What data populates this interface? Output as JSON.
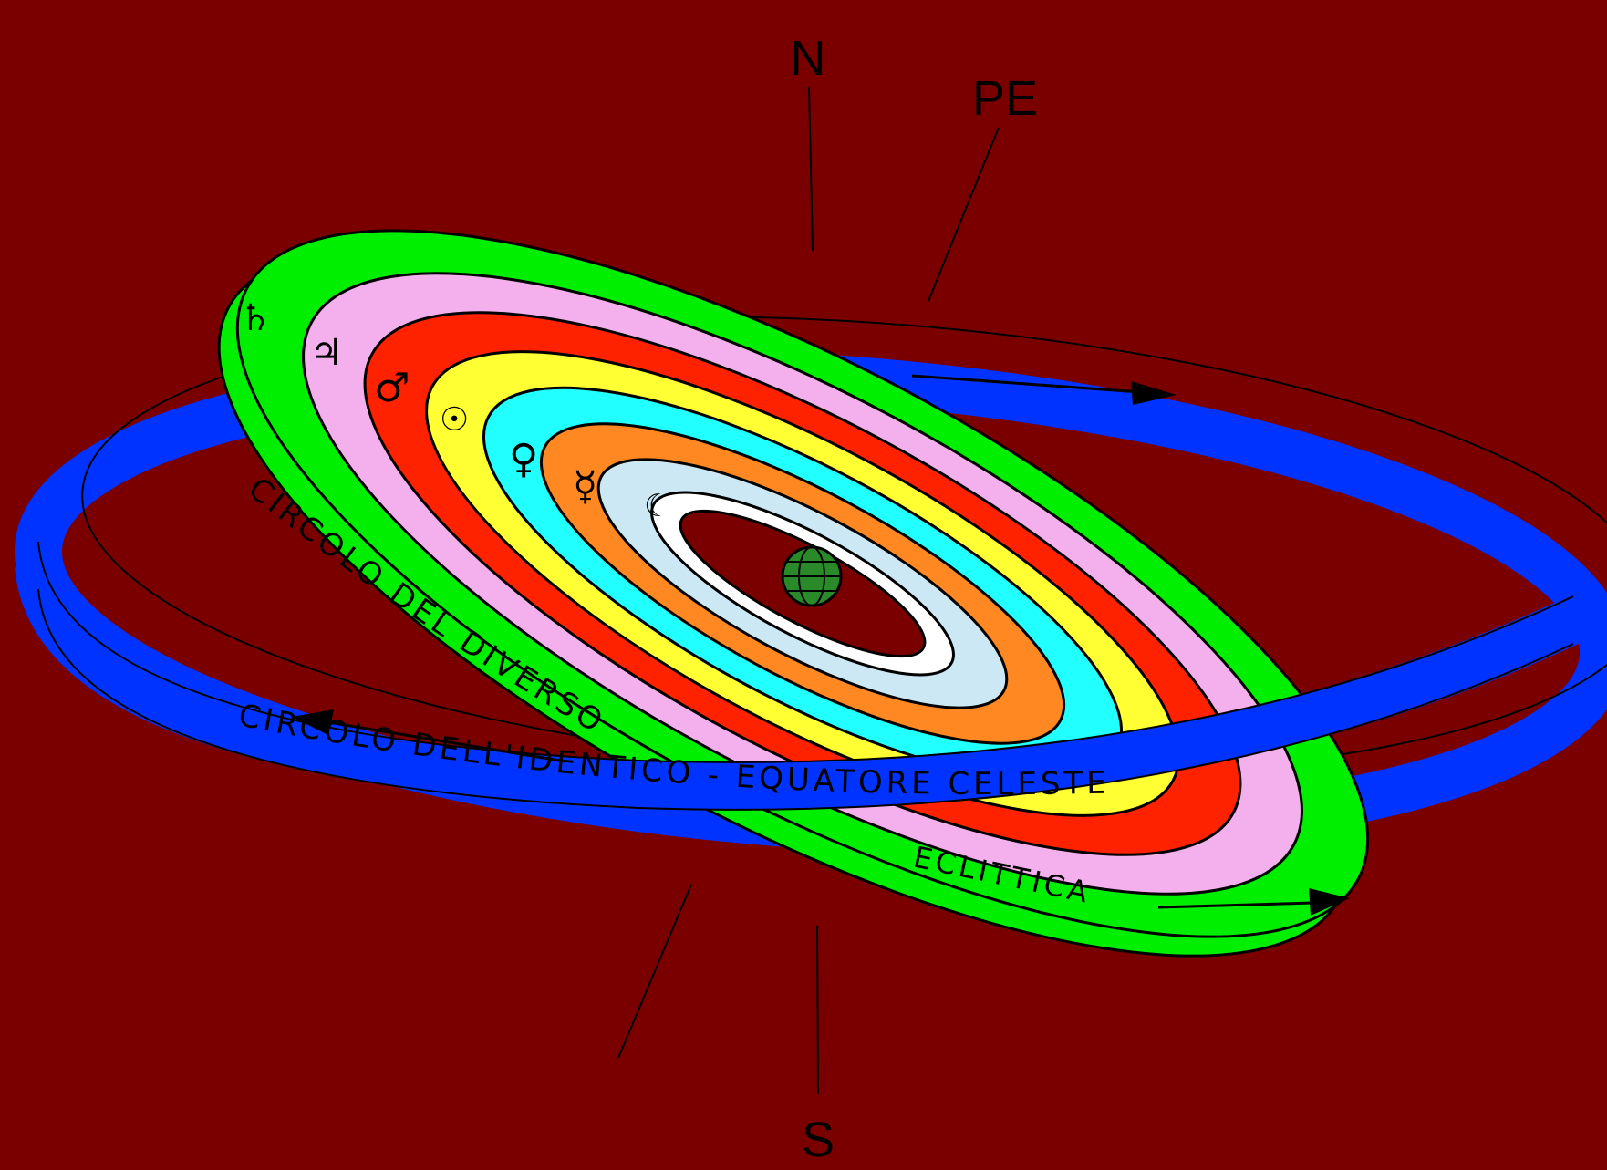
{
  "colors": {
    "background": "#7a0000",
    "equator_ring": "#0033ff",
    "ecliptic_edge": "#00ee00",
    "saturn_band": "#00ee00",
    "jupiter_band": "#f4b0ec",
    "mars_band": "#ff2200",
    "sun_band": "#ffff33",
    "venus_band": "#22ffff",
    "mercury_band": "#ff8822",
    "moon_band": "#cce8f4",
    "earth": "#2a8a2a"
  },
  "labels": {
    "north": "N",
    "south": "S",
    "pole_ecliptic": "PE"
  },
  "rings": {
    "diverse": "CIRCOLO DEL DIVERSO",
    "identical": "CIRCOLO DELL'IDENTICO  -  EQUATORE CELESTE",
    "ecliptic": "ECLITTICA"
  },
  "planet_symbols": {
    "saturn": "♄",
    "jupiter": "♃",
    "mars": "♂",
    "sun": "☉",
    "venus": "♀",
    "mercury": "☿",
    "moon": "☾"
  }
}
